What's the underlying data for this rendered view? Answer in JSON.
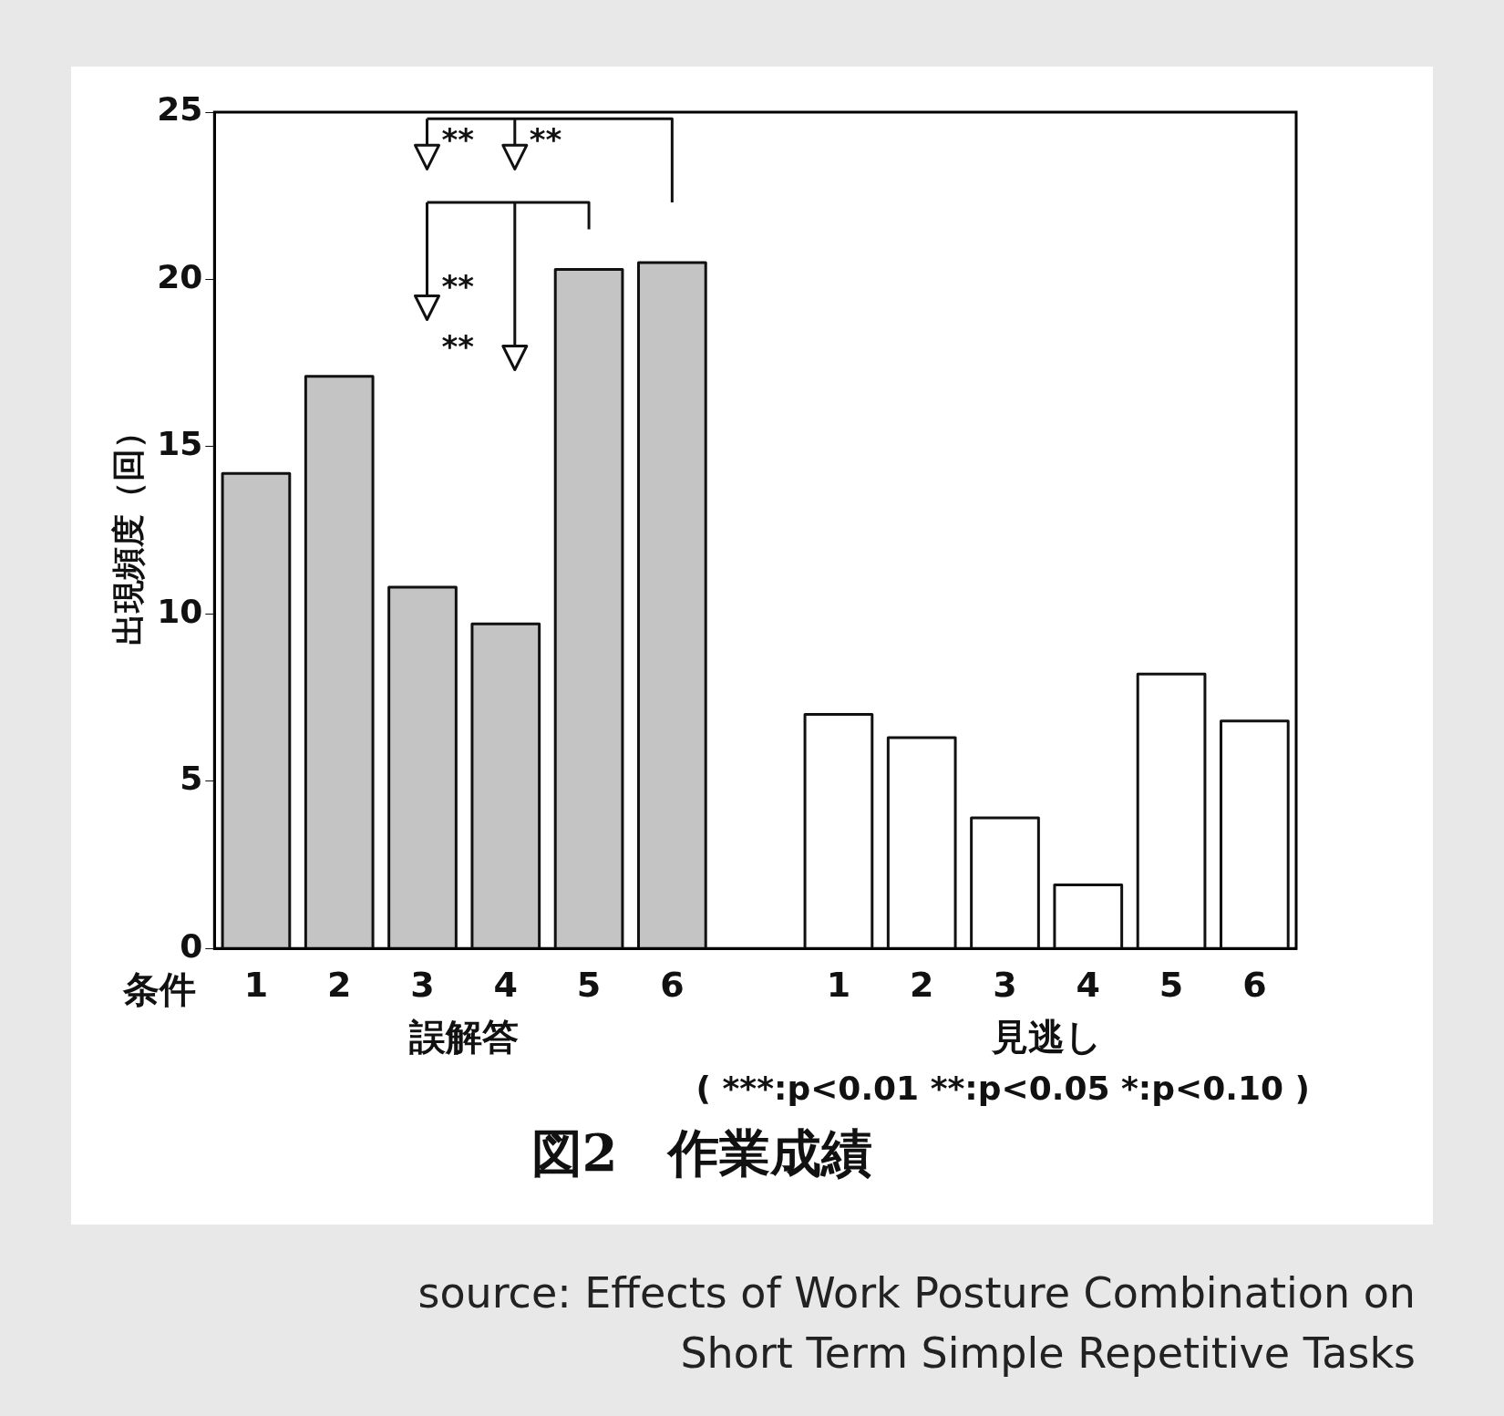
{
  "chart_data": {
    "type": "bar",
    "title": "図2　作業成績",
    "xlabel": "条件",
    "ylabel": "出現頻度（回）",
    "categories": [
      "1",
      "2",
      "3",
      "4",
      "5",
      "6",
      null,
      "1",
      "2",
      "3",
      "4",
      "5",
      "6"
    ],
    "series": [
      {
        "name": "誤解答",
        "color": "#c4c4c4",
        "values": [
          14.2,
          17.1,
          10.8,
          9.7,
          20.3,
          20.5,
          null,
          null,
          null,
          null,
          null,
          null,
          null
        ]
      },
      {
        "name": "見逃し",
        "color": "#ffffff",
        "values": [
          null,
          null,
          null,
          null,
          null,
          null,
          null,
          7.0,
          6.3,
          3.9,
          1.9,
          8.2,
          6.8
        ]
      }
    ],
    "ylim": [
      0,
      25
    ],
    "yticks": [
      0,
      5,
      10,
      15,
      20,
      25
    ],
    "grid": false,
    "legend": false,
    "annotations": [
      "**",
      "**",
      "**",
      "**",
      "( ***:p<0.01 **:p<0.05 *:p<0.10 )",
      "source: Effects of Work Posture Combination on Short Term Simple Repetitive Tasks"
    ]
  }
}
